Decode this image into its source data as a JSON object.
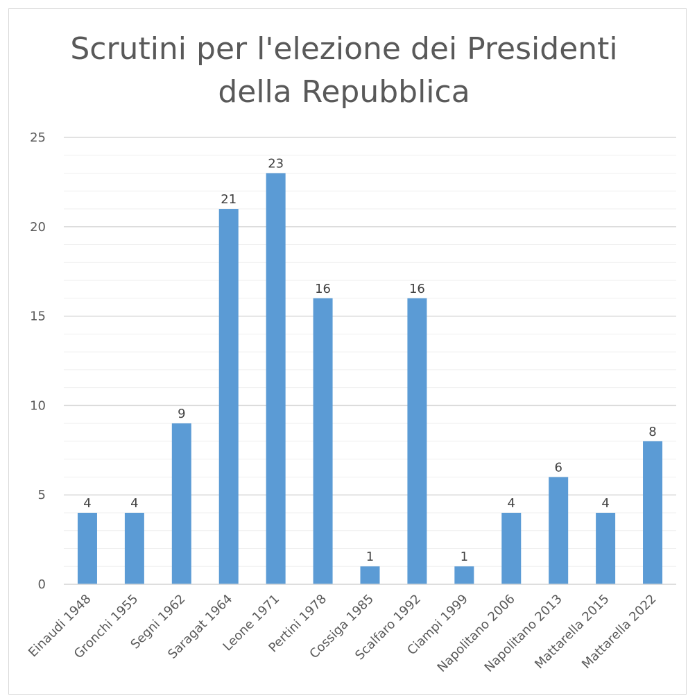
{
  "chart_data": {
    "type": "bar",
    "title_lines": [
      "Scrutini per l'elezione dei Presidenti",
      "della Repubblica"
    ],
    "categories": [
      "Einaudi 1948",
      "Gronchi 1955",
      "Segni 1962",
      "Saragat 1964",
      "Leone 1971",
      "Pertini 1978",
      "Cossiga 1985",
      "Scalfaro 1992",
      "Ciampi 1999",
      "Napolitano 2006",
      "Napolitano 2013",
      "Mattarella 2015",
      "Mattarella 2022"
    ],
    "values": [
      4,
      4,
      9,
      21,
      23,
      16,
      1,
      16,
      1,
      4,
      6,
      4,
      8
    ],
    "ylim": [
      0,
      25
    ],
    "yticks": [
      0,
      5,
      10,
      15,
      20,
      25
    ],
    "minor_gridlines": true,
    "data_labels": true,
    "bar_color": "#5b9bd5",
    "grid_color": "#d9d9d9",
    "minor_grid_color": "#efefef",
    "text_color": "#595959"
  }
}
